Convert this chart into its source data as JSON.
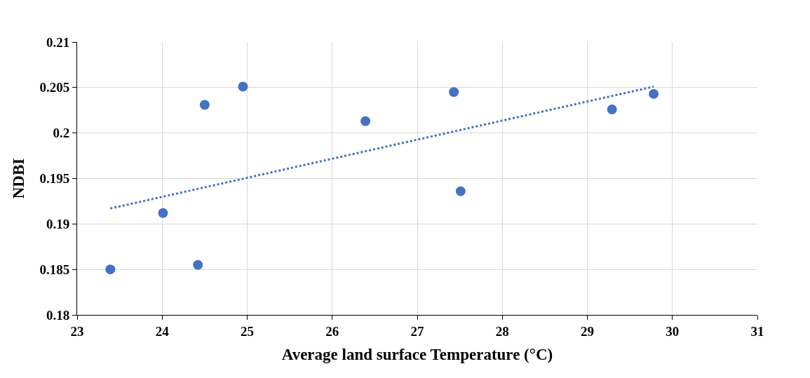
{
  "chart_data": {
    "type": "scatter",
    "xlabel": "Average land surface Temperature (°C)",
    "ylabel": "NDBI",
    "xlim": [
      23,
      31
    ],
    "xticks": [
      23,
      24,
      25,
      26,
      27,
      28,
      29,
      30,
      31
    ],
    "ylim": [
      0.18,
      0.21
    ],
    "yticks": [
      0.18,
      0.185,
      0.19,
      0.195,
      0.2,
      0.205,
      0.21
    ],
    "grid": true,
    "series": [
      {
        "marker": "circle",
        "color": "#4472c4",
        "x": [
          23.39,
          24.01,
          24.42,
          24.5,
          24.95,
          26.39,
          27.43,
          27.51,
          29.29,
          29.78
        ],
        "values": [
          0.185,
          0.1912,
          0.1855,
          0.2031,
          0.2051,
          0.2013,
          0.2045,
          0.1936,
          0.2026,
          0.2043
        ]
      },
      {
        "type": "line",
        "color": "#4472c4",
        "line_style": "dotted",
        "x": [
          23.39,
          29.78
        ],
        "values": [
          0.1917,
          0.2051
        ]
      }
    ]
  }
}
